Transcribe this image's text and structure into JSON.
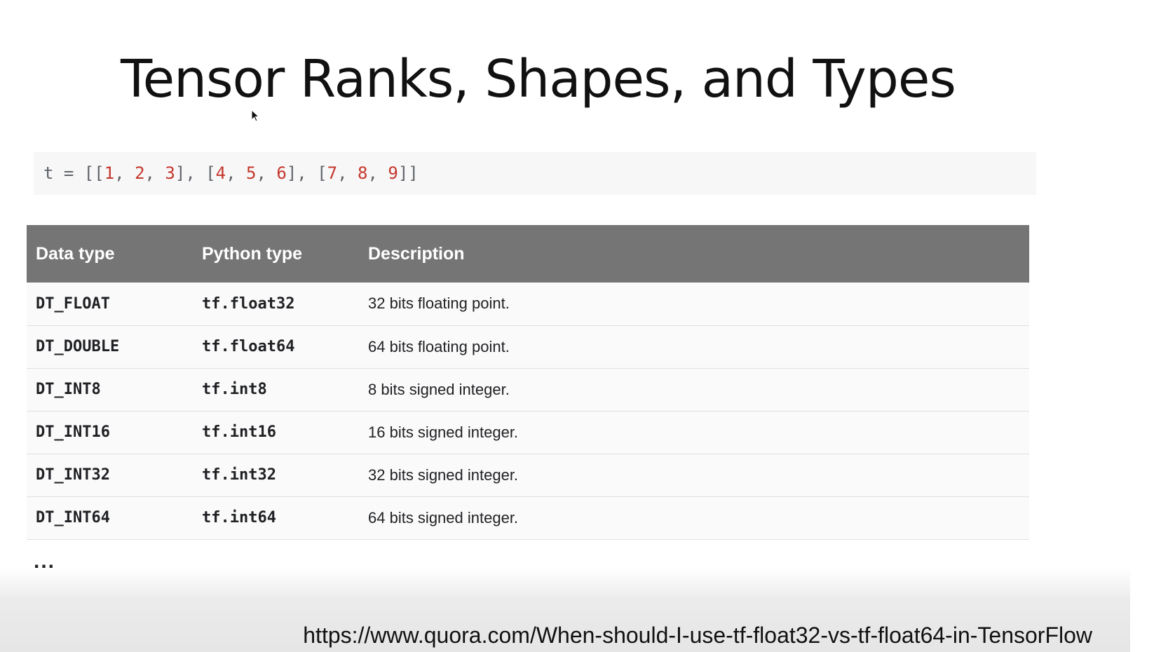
{
  "slide": {
    "title": "Tensor Ranks, Shapes, and Types",
    "code": {
      "prefix": "t = [[",
      "row1": [
        "1",
        "2",
        "3"
      ],
      "row2": [
        "4",
        "5",
        "6"
      ],
      "row3": [
        "7",
        "8",
        "9"
      ]
    },
    "table": {
      "headers": [
        "Data type",
        "Python type",
        "Description"
      ],
      "rows": [
        {
          "data_type": "DT_FLOAT",
          "python_type": "tf.float32",
          "description": "32 bits floating point."
        },
        {
          "data_type": "DT_DOUBLE",
          "python_type": "tf.float64",
          "description": "64 bits floating point."
        },
        {
          "data_type": "DT_INT8",
          "python_type": "tf.int8",
          "description": "8 bits signed integer."
        },
        {
          "data_type": "DT_INT16",
          "python_type": "tf.int16",
          "description": "16 bits signed integer."
        },
        {
          "data_type": "DT_INT32",
          "python_type": "tf.int32",
          "description": "32 bits signed integer."
        },
        {
          "data_type": "DT_INT64",
          "python_type": "tf.int64",
          "description": "64 bits signed integer."
        }
      ]
    },
    "ellipsis": "...",
    "source_url": "https://www.quora.com/When-should-I-use-tf-float32-vs-tf-float64-in-TensorFlow"
  },
  "colors": {
    "header_bg": "#757575",
    "code_bg": "#f7f7f7",
    "number_color": "#c5372c"
  },
  "icons": {
    "cursor": "mouse-pointer-icon"
  }
}
